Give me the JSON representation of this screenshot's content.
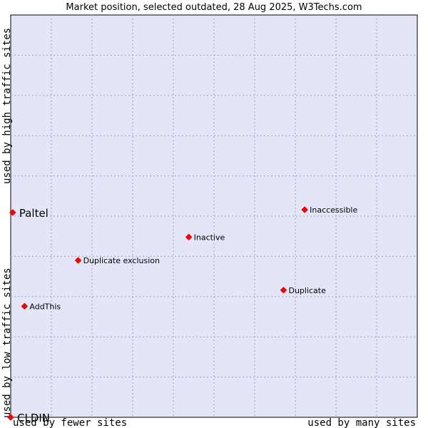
{
  "chart_data": {
    "type": "scatter",
    "title": "Market position, selected outdated, 28 Aug 2025, W3Techs.com",
    "xlabel_left": "used by fewer sites",
    "xlabel_right": "used by many sites",
    "ylabel_top": "used by high traffic sites",
    "ylabel_bottom": "used by low traffic sites",
    "xlim": [
      0,
      100
    ],
    "ylim": [
      0,
      100
    ],
    "grid": true,
    "colors": {
      "background": "#e4e6f8",
      "marker": "#ff0000",
      "grid": "#a0a0c8"
    },
    "points": [
      {
        "label": "Paltel",
        "x": 0.5,
        "y": 50.9,
        "emphasis": true
      },
      {
        "label": "CLDIN",
        "x": 0.0,
        "y": 0.0,
        "emphasis": true
      },
      {
        "label": "Inaccessible",
        "x": 72.3,
        "y": 51.6,
        "emphasis": false
      },
      {
        "label": "Inactive",
        "x": 43.8,
        "y": 44.8,
        "emphasis": false
      },
      {
        "label": "Duplicate exclusion",
        "x": 16.6,
        "y": 39.0,
        "emphasis": false
      },
      {
        "label": "Duplicate",
        "x": 67.1,
        "y": 31.6,
        "emphasis": false
      },
      {
        "label": "AddThis",
        "x": 3.4,
        "y": 27.6,
        "emphasis": false
      }
    ]
  }
}
